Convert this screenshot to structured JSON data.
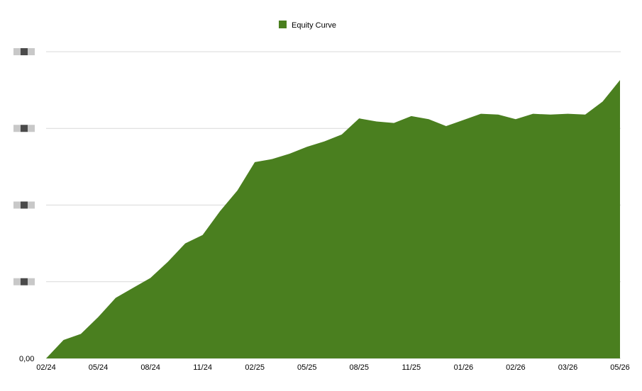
{
  "chart_data": {
    "type": "area",
    "title": "",
    "xlabel": "",
    "ylabel": "",
    "legend": {
      "position": "top-center",
      "entries": [
        "Equity Curve"
      ]
    },
    "grid": {
      "horizontal": true,
      "vertical": false
    },
    "colors": {
      "series": "#4a7f1f",
      "grid": "#d9d9d9",
      "redacted_dark": "#4a4a4a",
      "redacted_light": "#c8c8c8"
    },
    "y_tick_labels": [
      "0,00",
      "",
      "",
      "",
      ""
    ],
    "y_tick_labels_redacted": [
      false,
      true,
      true,
      true,
      true
    ],
    "x_tick_labels": [
      "02/24",
      "05/24",
      "08/24",
      "11/24",
      "02/25",
      "05/25",
      "08/25",
      "11/25",
      "01/26",
      "02/26",
      "03/26",
      "05/26"
    ],
    "x_tick_label_index": [
      0,
      3,
      6,
      9,
      12,
      15,
      18,
      21,
      24,
      27,
      30,
      33
    ],
    "ylim": [
      0,
      4
    ],
    "series": [
      {
        "name": "Equity Curve",
        "values": [
          0.0,
          0.24,
          0.32,
          0.54,
          0.79,
          0.92,
          1.05,
          1.26,
          1.5,
          1.61,
          1.92,
          2.19,
          2.56,
          2.6,
          2.67,
          2.76,
          2.83,
          2.92,
          3.13,
          3.09,
          3.07,
          3.16,
          3.12,
          3.03,
          3.11,
          3.19,
          3.18,
          3.12,
          3.19,
          3.18,
          3.19,
          3.18,
          3.35,
          3.63
        ]
      }
    ]
  }
}
